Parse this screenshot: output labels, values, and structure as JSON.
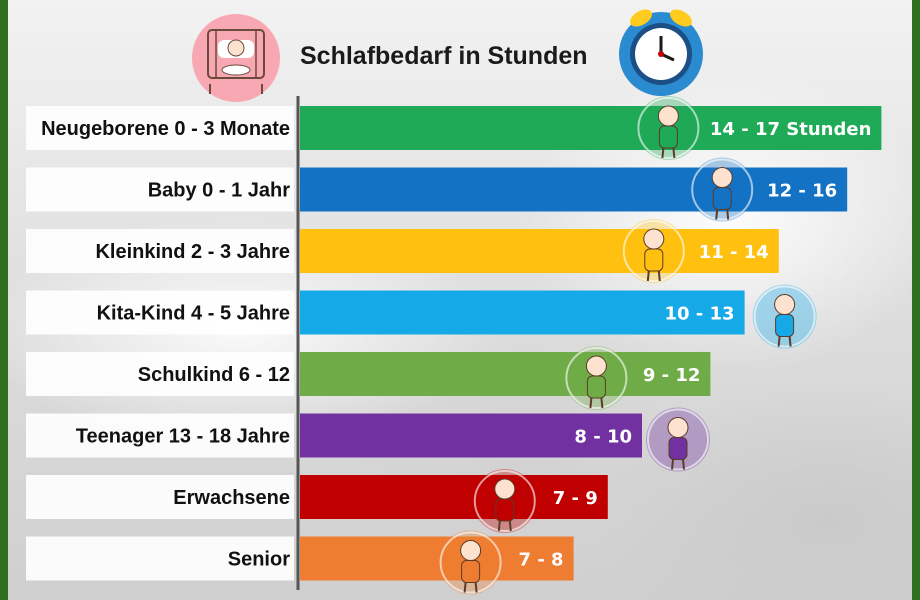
{
  "chart_data": {
    "type": "bar",
    "orientation": "horizontal",
    "title": "Schlafbedarf in Stunden",
    "categories": [
      "Neugeborene 0 - 3 Monate",
      "Baby 0 - 1 Jahr",
      "Kleinkind 2 - 3 Jahre",
      "Kita-Kind 4 - 5 Jahre",
      "Schulkind 6 - 12",
      "Teenager 13 - 18 Jahre",
      "Erwachsene",
      "Senior"
    ],
    "ranges": [
      [
        14,
        17
      ],
      [
        12,
        16
      ],
      [
        11,
        14
      ],
      [
        10,
        13
      ],
      [
        9,
        12
      ],
      [
        8,
        10
      ],
      [
        7,
        9
      ],
      [
        7,
        8
      ]
    ],
    "value_labels": [
      "14 - 17 Stunden",
      "12 - 16",
      "11 - 14",
      "10 - 13",
      "9 - 12",
      "8 - 10",
      "7 - 9",
      "7 - 8"
    ],
    "colors": [
      "#1faa57",
      "#1372c4",
      "#ffc010",
      "#15a9e8",
      "#6fac47",
      "#7131a0",
      "#c00000",
      "#ee7d31"
    ],
    "xlabel": "",
    "ylabel": "",
    "grid": false,
    "legend": "none"
  },
  "decorations": {
    "title_left_icon": "sleeping-baby-crib-icon",
    "title_right_icon": "alarm-clock-icon",
    "row_icons": [
      "swaddled-newborn-icon",
      "baby-with-pacifier-icon",
      "crawling-toddler-icon",
      "kindergarten-boy-icon",
      "schoolgirl-icon",
      "teenage-girl-icon",
      "adult-man-icon",
      "senior-man-icon"
    ]
  }
}
